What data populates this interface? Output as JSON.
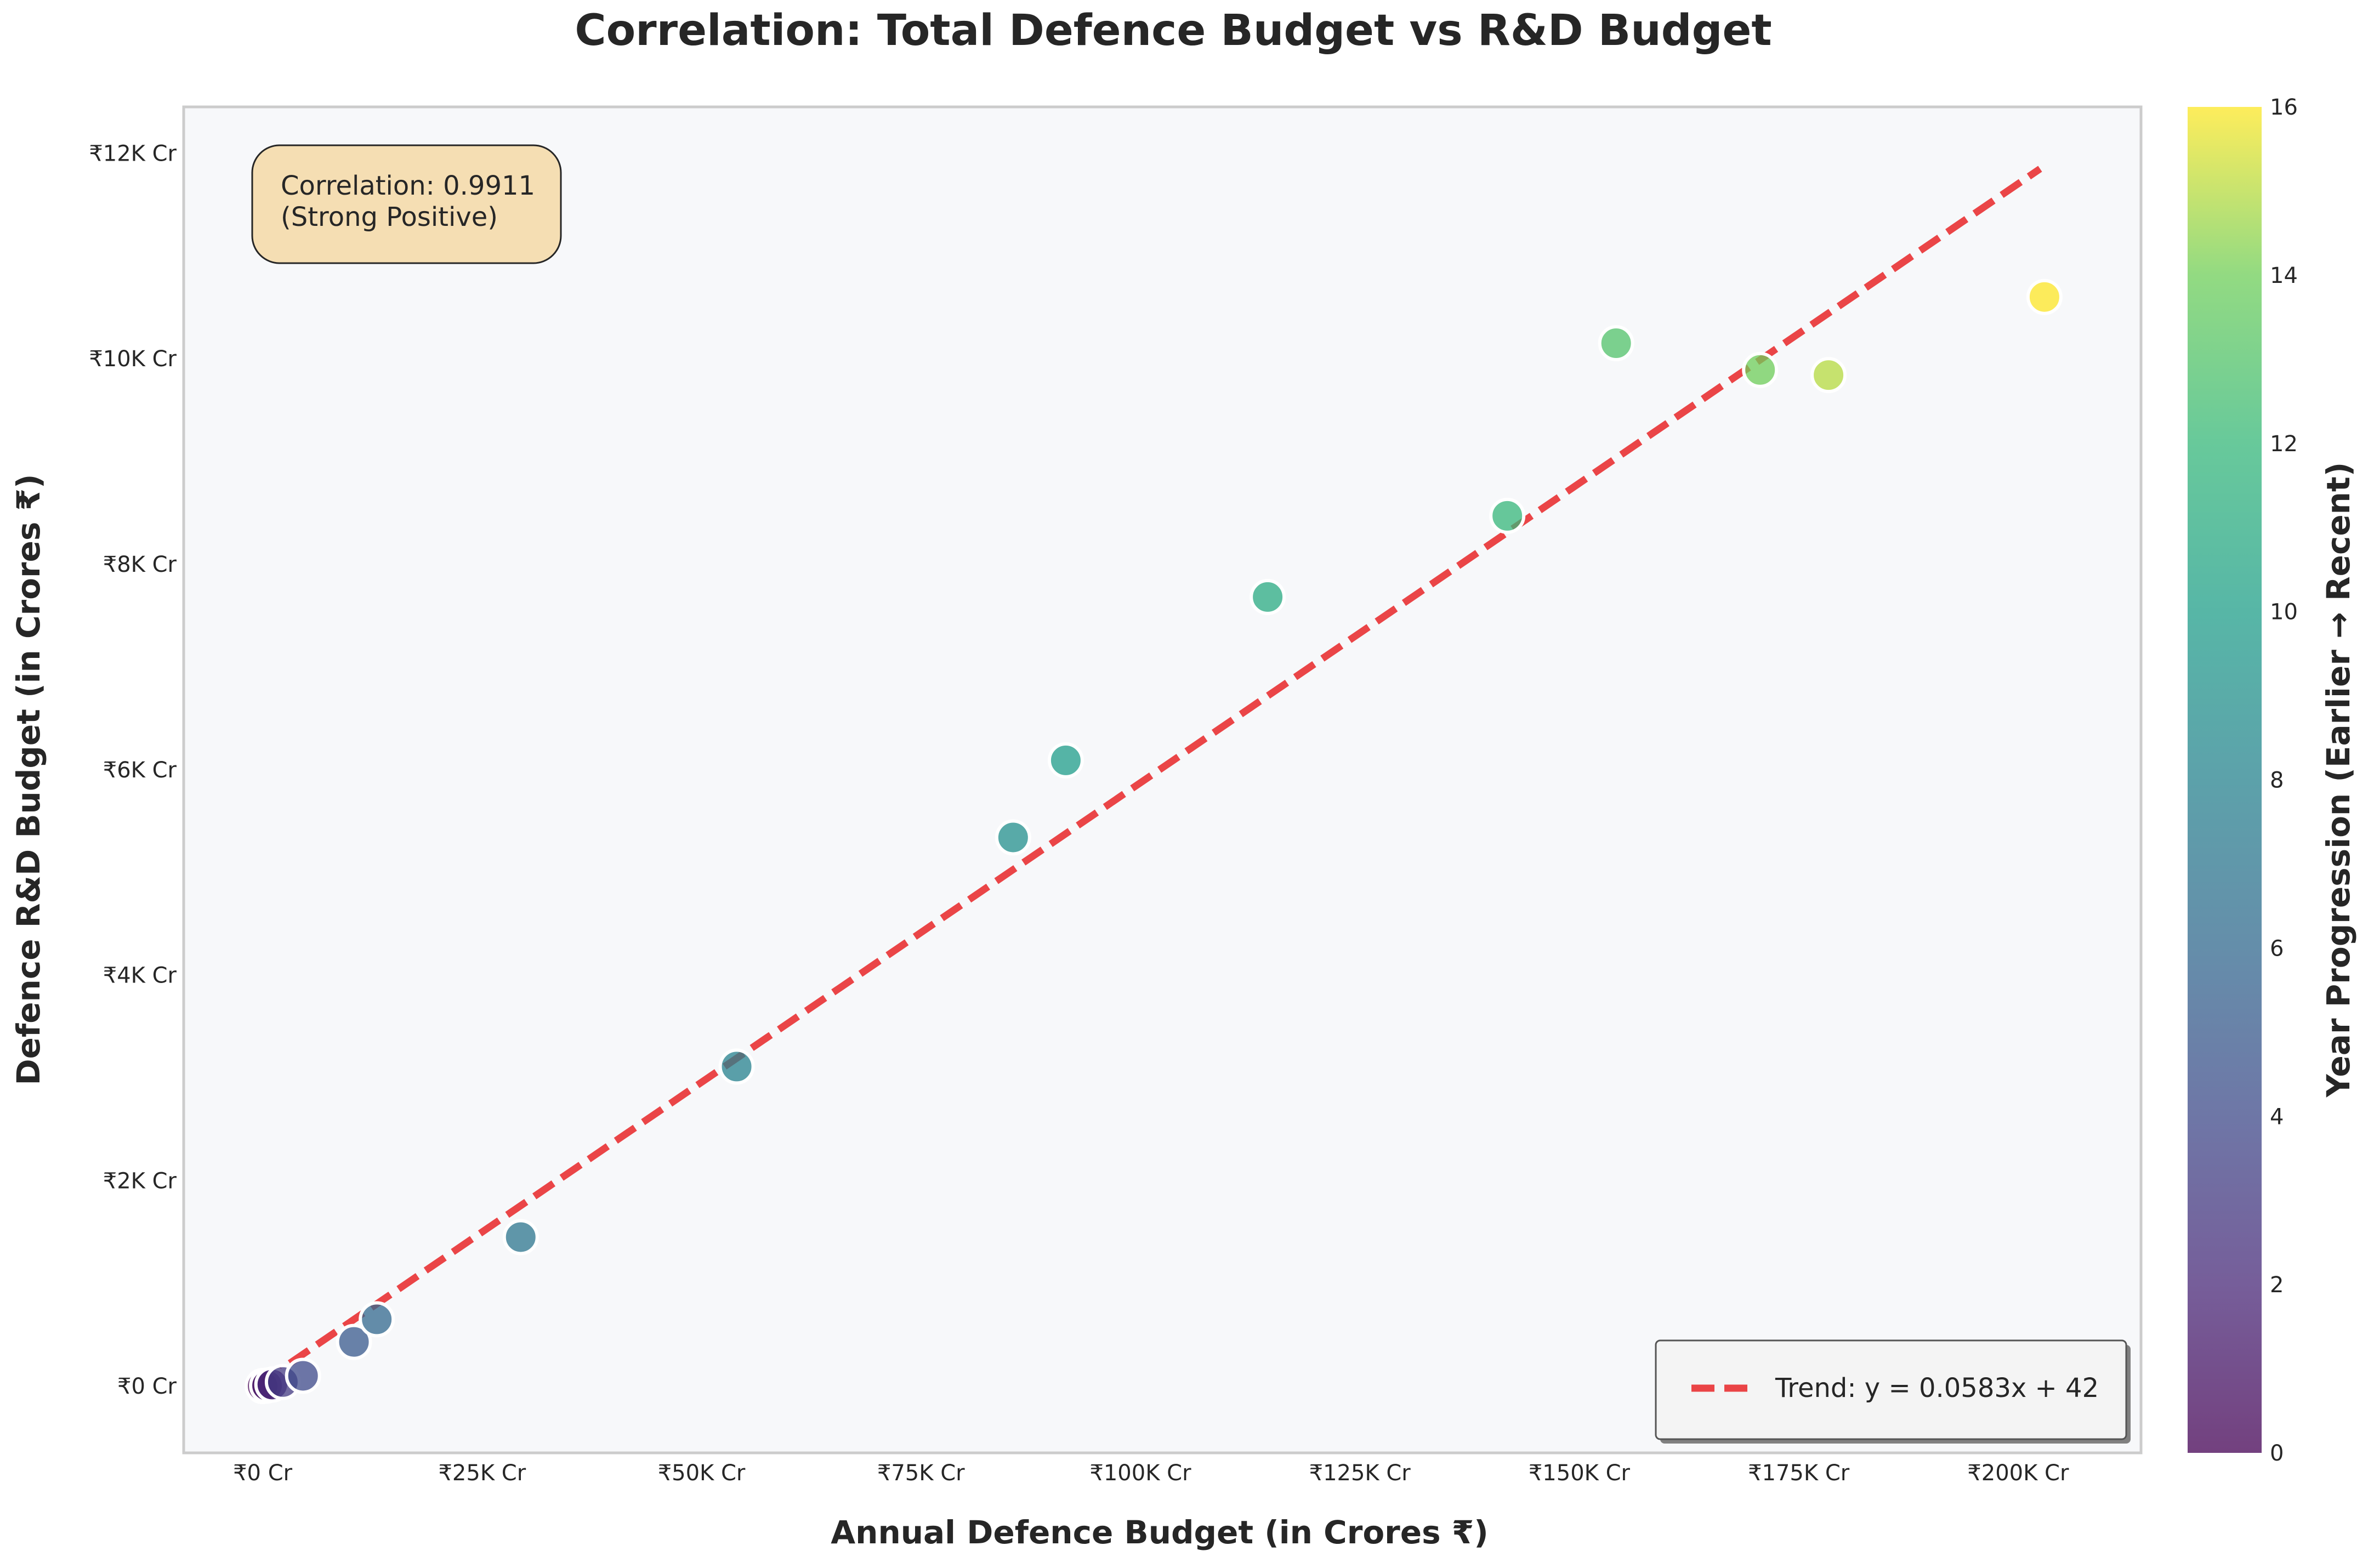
{
  "chart_data": {
    "type": "scatter",
    "title": "Correlation: Total Defence Budget vs R&D Budget",
    "xlabel": "Annual Defence Budget (in Crores ₹)",
    "ylabel": "Defence R&D Budget (in Crores ₹)",
    "xlim": [
      -9000,
      214000
    ],
    "ylim": [
      -650,
      12450
    ],
    "x_ticks": [
      0,
      25000,
      50000,
      75000,
      100000,
      125000,
      150000,
      175000,
      200000
    ],
    "x_tick_labels": [
      "₹0 Cr",
      "₹25K Cr",
      "₹50K Cr",
      "₹75K Cr",
      "₹100K Cr",
      "₹125K Cr",
      "₹150K Cr",
      "₹175K Cr",
      "₹200K Cr"
    ],
    "y_ticks": [
      0,
      2000,
      4000,
      6000,
      8000,
      10000,
      12000
    ],
    "y_tick_labels": [
      "₹0 Cr",
      "₹2K Cr",
      "₹4K Cr",
      "₹6K Cr",
      "₹8K Cr",
      "₹10K Cr",
      "₹12K Cr"
    ],
    "grid": false,
    "points": [
      {
        "x": 0,
        "y": 0,
        "c": 0
      },
      {
        "x": 500,
        "y": 5,
        "c": 1
      },
      {
        "x": 1100,
        "y": 15,
        "c": 2
      },
      {
        "x": 2300,
        "y": 40,
        "c": 3
      },
      {
        "x": 4600,
        "y": 100,
        "c": 4
      },
      {
        "x": 10400,
        "y": 430,
        "c": 5
      },
      {
        "x": 13000,
        "y": 650,
        "c": 6
      },
      {
        "x": 29400,
        "y": 1450,
        "c": 7
      },
      {
        "x": 54000,
        "y": 3110,
        "c": 8
      },
      {
        "x": 85500,
        "y": 5340,
        "c": 9
      },
      {
        "x": 91500,
        "y": 6090,
        "c": 10
      },
      {
        "x": 114500,
        "y": 7680,
        "c": 11
      },
      {
        "x": 141800,
        "y": 8470,
        "c": 12
      },
      {
        "x": 154200,
        "y": 10150,
        "c": 13
      },
      {
        "x": 170600,
        "y": 9890,
        "c": 14
      },
      {
        "x": 178400,
        "y": 9840,
        "c": 15
      },
      {
        "x": 203000,
        "y": 10600,
        "c": 16
      }
    ],
    "trend": {
      "slope": 0.0583,
      "intercept": 42,
      "x_range": [
        0,
        202500
      ],
      "color": "#e8191b",
      "label": "Trend: y = 0.0583x + 42"
    },
    "legend_placement": "lower-right",
    "colorbar": {
      "label": "Year Progression (Earlier → Recent)",
      "range": [
        0,
        16
      ],
      "ticks": [
        0,
        2,
        4,
        6,
        8,
        10,
        12,
        14,
        16
      ],
      "tick_labels": [
        "0",
        "2",
        "4",
        "6",
        "8",
        "10",
        "12",
        "14",
        "16"
      ],
      "colormap": "viridis"
    },
    "annotation": {
      "line1": "Correlation: 0.9911",
      "line2": "(Strong Positive)",
      "placement": "top-left"
    }
  },
  "colors": {
    "plot_background": "#f7f8fa",
    "plot_border": "#cccccc",
    "annotation_fill": "#f5deb3",
    "trend": "#e8191b",
    "marker_edge": "#ffffff"
  }
}
